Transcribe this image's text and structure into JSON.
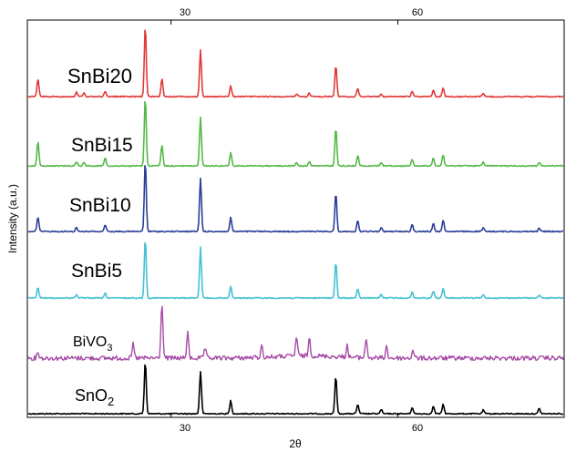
{
  "chart_data": {
    "type": "line",
    "title": "",
    "xlabel": "2θ",
    "ylabel": "Intensity (a.u.)",
    "xlim": [
      11,
      82
    ],
    "x_ticks": [
      30,
      60
    ],
    "x_tick_labels": [
      "30",
      "60"
    ],
    "grid": false,
    "legend": "none (series labelled directly on the plot)",
    "series": [
      {
        "name": "SnO2",
        "name_display": "SnO",
        "name_sub": "2",
        "color": "#000000",
        "peaks": [
          [
            26.6,
            1.0
          ],
          [
            33.9,
            0.8
          ],
          [
            37.9,
            0.25
          ],
          [
            51.8,
            0.72
          ],
          [
            54.7,
            0.18
          ],
          [
            57.8,
            0.08
          ],
          [
            61.9,
            0.12
          ],
          [
            64.7,
            0.14
          ],
          [
            66.0,
            0.18
          ],
          [
            71.3,
            0.07
          ],
          [
            78.7,
            0.1
          ]
        ]
      },
      {
        "name": "BiVO3",
        "name_display": "BiVO",
        "name_sub": "3",
        "color": "#a64ca6",
        "peaks": [
          [
            12.4,
            0.12
          ],
          [
            25.0,
            0.25
          ],
          [
            28.8,
            1.0
          ],
          [
            32.2,
            0.45
          ],
          [
            34.5,
            0.18
          ],
          [
            42.0,
            0.2
          ],
          [
            46.6,
            0.35
          ],
          [
            48.3,
            0.32
          ],
          [
            53.3,
            0.2
          ],
          [
            55.8,
            0.35
          ],
          [
            58.5,
            0.2
          ],
          [
            62.0,
            0.15
          ]
        ]
      },
      {
        "name": "SnBi5",
        "color": "#45c2d3",
        "peaks": [
          [
            12.4,
            0.18
          ],
          [
            17.5,
            0.06
          ],
          [
            21.3,
            0.08
          ],
          [
            26.6,
            1.0
          ],
          [
            33.9,
            0.85
          ],
          [
            37.9,
            0.2
          ],
          [
            51.8,
            0.6
          ],
          [
            54.7,
            0.15
          ],
          [
            57.8,
            0.06
          ],
          [
            61.9,
            0.1
          ],
          [
            64.7,
            0.12
          ],
          [
            66.0,
            0.16
          ],
          [
            71.3,
            0.05
          ],
          [
            78.7,
            0.05
          ]
        ]
      },
      {
        "name": "SnBi10",
        "color": "#2b3f99",
        "peaks": [
          [
            12.4,
            0.2
          ],
          [
            17.5,
            0.06
          ],
          [
            21.3,
            0.1
          ],
          [
            26.6,
            1.0
          ],
          [
            33.9,
            0.75
          ],
          [
            37.9,
            0.2
          ],
          [
            51.8,
            0.55
          ],
          [
            54.7,
            0.15
          ],
          [
            57.8,
            0.05
          ],
          [
            61.9,
            0.1
          ],
          [
            64.7,
            0.12
          ],
          [
            66.0,
            0.16
          ],
          [
            71.3,
            0.05
          ],
          [
            78.7,
            0.05
          ]
        ]
      },
      {
        "name": "SnBi15",
        "color": "#55b947",
        "peaks": [
          [
            12.4,
            0.35
          ],
          [
            17.5,
            0.06
          ],
          [
            18.5,
            0.05
          ],
          [
            21.3,
            0.12
          ],
          [
            26.6,
            1.0
          ],
          [
            28.8,
            0.3
          ],
          [
            33.9,
            0.7
          ],
          [
            37.9,
            0.2
          ],
          [
            46.6,
            0.05
          ],
          [
            48.3,
            0.06
          ],
          [
            51.8,
            0.55
          ],
          [
            54.7,
            0.15
          ],
          [
            57.8,
            0.05
          ],
          [
            61.9,
            0.1
          ],
          [
            64.7,
            0.12
          ],
          [
            66.0,
            0.16
          ],
          [
            71.3,
            0.05
          ],
          [
            78.7,
            0.05
          ]
        ]
      },
      {
        "name": "SnBi20",
        "color": "#e03a3a",
        "peaks": [
          [
            12.4,
            0.25
          ],
          [
            17.5,
            0.06
          ],
          [
            18.5,
            0.05
          ],
          [
            21.3,
            0.08
          ],
          [
            26.6,
            1.0
          ],
          [
            28.8,
            0.25
          ],
          [
            33.9,
            0.65
          ],
          [
            37.9,
            0.15
          ],
          [
            46.6,
            0.04
          ],
          [
            48.3,
            0.05
          ],
          [
            51.8,
            0.45
          ],
          [
            54.7,
            0.12
          ],
          [
            57.8,
            0.04
          ],
          [
            61.9,
            0.08
          ],
          [
            64.7,
            0.1
          ],
          [
            66.0,
            0.12
          ],
          [
            71.3,
            0.04
          ]
        ]
      }
    ]
  }
}
